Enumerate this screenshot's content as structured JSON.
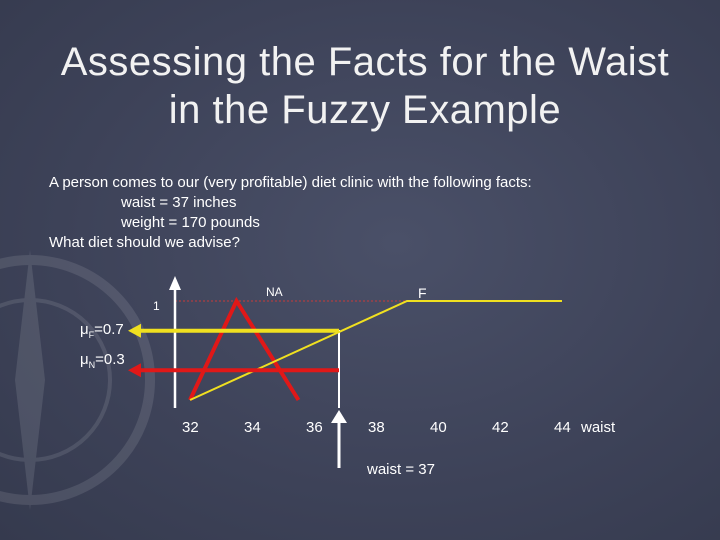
{
  "slide": {
    "title_line1": "Assessing the Facts for the Waist",
    "title_line2": "in the Fuzzy Example",
    "intro": "A person comes to our (very profitable) diet clinic with the following facts:",
    "fact1": "waist = 37 inches",
    "fact2": "weight = 170 pounds",
    "question": "What diet should we advise?"
  },
  "chart": {
    "y_tick": "1",
    "label_na": "NA",
    "label_f": "F",
    "mu_f_sym": "μ",
    "mu_f_sub": "F",
    "mu_f_val": "=0.7",
    "mu_n_sym": "μ",
    "mu_n_sub": "N",
    "mu_n_val": "=0.3",
    "x_ticks": [
      "32",
      "34",
      "36",
      "38",
      "40",
      "42",
      "44"
    ],
    "x_axis_label": "waist",
    "input_label": "waist = 37"
  },
  "chart_data": {
    "type": "line",
    "x_tick_values": [
      32,
      34,
      36,
      38,
      40,
      42,
      44
    ],
    "y_tick_values": [
      1
    ],
    "xlabel": "waist",
    "series": [
      {
        "name": "NA",
        "x": [
          32,
          33.5,
          35.5
        ],
        "y": [
          0,
          1,
          0
        ]
      },
      {
        "name": "F",
        "x": [
          32,
          39,
          44
        ],
        "y": [
          0,
          1,
          1
        ]
      }
    ],
    "input": {
      "x": 37,
      "label": "waist = 37"
    },
    "memberships": [
      {
        "name": "F",
        "value": 0.7
      },
      {
        "name": "N",
        "value": 0.3
      }
    ],
    "colors": {
      "na": "#e01818",
      "f": "#f0e020",
      "axis": "#ffffff",
      "guide": "#c83a3a"
    }
  }
}
